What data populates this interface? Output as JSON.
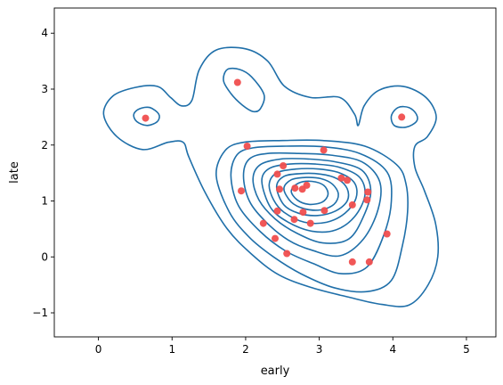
{
  "chart_data": {
    "type": "scatter",
    "title": "",
    "xlabel": "early",
    "ylabel": "late",
    "xlim": [
      -0.6,
      5.4
    ],
    "ylim": [
      -1.43,
      4.45
    ],
    "grid": false,
    "xticks": [
      0,
      1,
      2,
      3,
      4,
      5
    ],
    "xtick_labels": [
      "0",
      "1",
      "2",
      "3",
      "4",
      "5"
    ],
    "yticks": [
      -1,
      0,
      1,
      2,
      3,
      4
    ],
    "ytick_labels": [
      "−1",
      "0",
      "1",
      "2",
      "3",
      "4"
    ],
    "colors": {
      "points": "#f04e4e",
      "contours": "#1f6fa9",
      "axes": "#000000"
    },
    "series": [
      {
        "type": "scatter",
        "points": [
          {
            "x": 0.64,
            "y": 2.48
          },
          {
            "x": 1.89,
            "y": 3.12
          },
          {
            "x": 2.02,
            "y": 1.98
          },
          {
            "x": 1.94,
            "y": 1.18
          },
          {
            "x": 2.43,
            "y": 1.48
          },
          {
            "x": 2.51,
            "y": 1.63
          },
          {
            "x": 2.46,
            "y": 1.21
          },
          {
            "x": 2.43,
            "y": 0.82
          },
          {
            "x": 2.24,
            "y": 0.6
          },
          {
            "x": 2.4,
            "y": 0.33
          },
          {
            "x": 2.56,
            "y": 0.06
          },
          {
            "x": 2.66,
            "y": 0.67
          },
          {
            "x": 2.78,
            "y": 0.8
          },
          {
            "x": 2.88,
            "y": 0.6
          },
          {
            "x": 2.67,
            "y": 1.23
          },
          {
            "x": 2.77,
            "y": 1.21
          },
          {
            "x": 2.83,
            "y": 1.28
          },
          {
            "x": 3.06,
            "y": 1.91
          },
          {
            "x": 3.07,
            "y": 0.83
          },
          {
            "x": 3.3,
            "y": 1.41
          },
          {
            "x": 3.38,
            "y": 1.37
          },
          {
            "x": 3.45,
            "y": 0.93
          },
          {
            "x": 3.66,
            "y": 1.16
          },
          {
            "x": 3.65,
            "y": 1.02
          },
          {
            "x": 3.45,
            "y": -0.09
          },
          {
            "x": 3.68,
            "y": -0.09
          },
          {
            "x": 3.92,
            "y": 0.41
          },
          {
            "x": 4.12,
            "y": 2.5
          }
        ]
      },
      {
        "type": "kde-contour",
        "levels": [
          [
            [
              0.5,
              3.03
            ],
            [
              0.8,
              3.05
            ],
            [
              0.98,
              2.85
            ],
            [
              1.13,
              2.7
            ],
            [
              1.27,
              2.8
            ],
            [
              1.37,
              3.35
            ],
            [
              1.6,
              3.7
            ],
            [
              2.0,
              3.72
            ],
            [
              2.3,
              3.5
            ],
            [
              2.53,
              3.05
            ],
            [
              2.88,
              2.85
            ],
            [
              3.28,
              2.85
            ],
            [
              3.48,
              2.55
            ],
            [
              3.53,
              2.35
            ],
            [
              3.61,
              2.7
            ],
            [
              3.81,
              2.98
            ],
            [
              4.14,
              3.05
            ],
            [
              4.45,
              2.85
            ],
            [
              4.59,
              2.5
            ],
            [
              4.47,
              2.15
            ],
            [
              4.3,
              1.98
            ],
            [
              4.3,
              1.6
            ],
            [
              4.43,
              1.18
            ],
            [
              4.58,
              0.6
            ],
            [
              4.61,
              0.0
            ],
            [
              4.48,
              -0.5
            ],
            [
              4.22,
              -0.86
            ],
            [
              3.85,
              -0.85
            ],
            [
              3.4,
              -0.72
            ],
            [
              2.9,
              -0.55
            ],
            [
              2.45,
              -0.32
            ],
            [
              2.08,
              0.05
            ],
            [
              1.75,
              0.5
            ],
            [
              1.45,
              1.15
            ],
            [
              1.23,
              1.78
            ],
            [
              1.15,
              2.05
            ],
            [
              0.95,
              2.05
            ],
            [
              0.6,
              1.92
            ],
            [
              0.25,
              2.15
            ],
            [
              0.07,
              2.55
            ],
            [
              0.2,
              2.88
            ]
          ],
          [
            [
              0.48,
              2.55
            ],
            [
              0.56,
              2.65
            ],
            [
              0.7,
              2.67
            ],
            [
              0.82,
              2.55
            ],
            [
              0.8,
              2.42
            ],
            [
              0.66,
              2.35
            ],
            [
              0.52,
              2.42
            ]
          ],
          [
            [
              1.7,
              3.15
            ],
            [
              1.75,
              3.35
            ],
            [
              1.92,
              3.35
            ],
            [
              2.08,
              3.22
            ],
            [
              2.25,
              2.9
            ],
            [
              2.2,
              2.65
            ],
            [
              2.1,
              2.6
            ],
            [
              1.95,
              2.72
            ],
            [
              1.8,
              2.92
            ]
          ],
          [
            [
              3.98,
              2.52
            ],
            [
              4.07,
              2.67
            ],
            [
              4.22,
              2.67
            ],
            [
              4.32,
              2.55
            ],
            [
              4.32,
              2.42
            ],
            [
              4.18,
              2.32
            ],
            [
              4.02,
              2.35
            ]
          ],
          [
            [
              1.6,
              1.45
            ],
            [
              1.72,
              1.9
            ],
            [
              1.98,
              2.05
            ],
            [
              2.5,
              2.08
            ],
            [
              3.05,
              2.08
            ],
            [
              3.62,
              1.98
            ],
            [
              4.05,
              1.65
            ],
            [
              4.18,
              1.3
            ],
            [
              4.2,
              0.8
            ],
            [
              4.13,
              0.2
            ],
            [
              3.98,
              -0.42
            ],
            [
              3.65,
              -0.62
            ],
            [
              3.2,
              -0.55
            ],
            [
              2.75,
              -0.3
            ],
            [
              2.38,
              0.0
            ],
            [
              2.05,
              0.35
            ],
            [
              1.78,
              0.8
            ]
          ],
          [
            [
              1.8,
              1.45
            ],
            [
              1.88,
              1.82
            ],
            [
              2.1,
              1.95
            ],
            [
              2.55,
              1.98
            ],
            [
              3.05,
              1.97
            ],
            [
              3.55,
              1.85
            ],
            [
              3.92,
              1.52
            ],
            [
              3.98,
              1.0
            ],
            [
              3.88,
              0.4
            ],
            [
              3.65,
              -0.18
            ],
            [
              3.3,
              -0.3
            ],
            [
              2.92,
              -0.12
            ],
            [
              2.55,
              0.1
            ],
            [
              2.2,
              0.45
            ],
            [
              1.9,
              0.92
            ]
          ],
          [
            [
              1.97,
              1.45
            ],
            [
              2.05,
              1.75
            ],
            [
              2.3,
              1.85
            ],
            [
              2.72,
              1.85
            ],
            [
              3.15,
              1.82
            ],
            [
              3.58,
              1.7
            ],
            [
              3.82,
              1.35
            ],
            [
              3.8,
              0.85
            ],
            [
              3.6,
              0.32
            ],
            [
              3.28,
              0.02
            ],
            [
              2.9,
              0.12
            ],
            [
              2.58,
              0.3
            ],
            [
              2.28,
              0.62
            ],
            [
              2.05,
              1.0
            ]
          ],
          [
            [
              2.1,
              1.4
            ],
            [
              2.2,
              1.65
            ],
            [
              2.48,
              1.75
            ],
            [
              2.85,
              1.75
            ],
            [
              3.22,
              1.7
            ],
            [
              3.58,
              1.55
            ],
            [
              3.7,
              1.18
            ],
            [
              3.6,
              0.72
            ],
            [
              3.4,
              0.32
            ],
            [
              3.05,
              0.25
            ],
            [
              2.7,
              0.42
            ],
            [
              2.4,
              0.68
            ],
            [
              2.18,
              1.02
            ]
          ],
          [
            [
              2.22,
              1.35
            ],
            [
              2.32,
              1.58
            ],
            [
              2.6,
              1.66
            ],
            [
              2.95,
              1.66
            ],
            [
              3.28,
              1.6
            ],
            [
              3.55,
              1.42
            ],
            [
              3.62,
              1.1
            ],
            [
              3.48,
              0.72
            ],
            [
              3.22,
              0.48
            ],
            [
              2.9,
              0.46
            ],
            [
              2.58,
              0.62
            ],
            [
              2.34,
              0.88
            ]
          ],
          [
            [
              2.32,
              1.3
            ],
            [
              2.42,
              1.5
            ],
            [
              2.68,
              1.57
            ],
            [
              3.0,
              1.57
            ],
            [
              3.28,
              1.5
            ],
            [
              3.48,
              1.32
            ],
            [
              3.5,
              1.05
            ],
            [
              3.35,
              0.78
            ],
            [
              3.1,
              0.62
            ],
            [
              2.8,
              0.62
            ],
            [
              2.52,
              0.8
            ],
            [
              2.38,
              1.02
            ]
          ],
          [
            [
              2.42,
              1.25
            ],
            [
              2.52,
              1.44
            ],
            [
              2.75,
              1.49
            ],
            [
              3.02,
              1.48
            ],
            [
              3.24,
              1.4
            ],
            [
              3.38,
              1.22
            ],
            [
              3.38,
              1.0
            ],
            [
              3.22,
              0.82
            ],
            [
              2.98,
              0.74
            ],
            [
              2.72,
              0.78
            ],
            [
              2.52,
              0.93
            ]
          ],
          [
            [
              2.52,
              1.22
            ],
            [
              2.62,
              1.38
            ],
            [
              2.82,
              1.42
            ],
            [
              3.02,
              1.4
            ],
            [
              3.18,
              1.3
            ],
            [
              3.26,
              1.12
            ],
            [
              3.2,
              0.94
            ],
            [
              3.02,
              0.84
            ],
            [
              2.8,
              0.86
            ],
            [
              2.62,
              0.98
            ]
          ],
          [
            [
              2.62,
              1.18
            ],
            [
              2.72,
              1.32
            ],
            [
              2.9,
              1.35
            ],
            [
              3.06,
              1.28
            ],
            [
              3.12,
              1.12
            ],
            [
              3.04,
              0.98
            ],
            [
              2.86,
              0.94
            ],
            [
              2.7,
              1.02
            ]
          ]
        ]
      }
    ]
  }
}
